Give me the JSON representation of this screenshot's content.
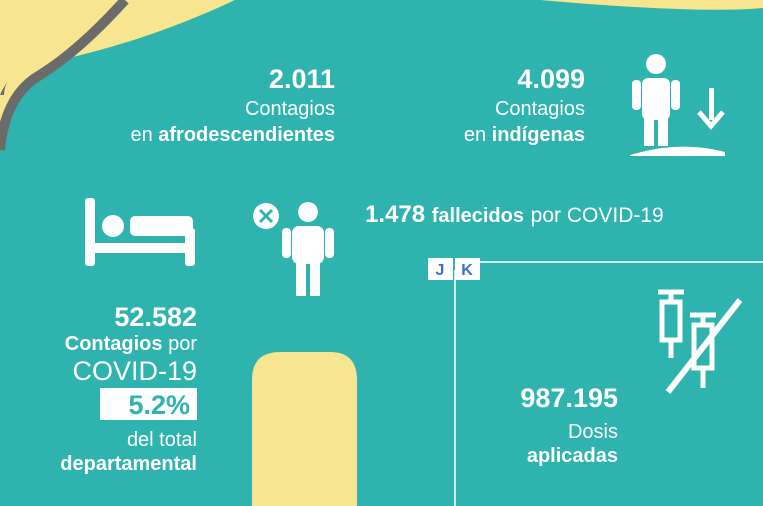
{
  "afro": {
    "number": "2.011",
    "line1": "Contagios",
    "prefix": "en",
    "group": "afrodescendientes"
  },
  "indigenous": {
    "number": "4.099",
    "line1": "Contagios",
    "prefix": "en",
    "group": "indígenas"
  },
  "deaths": {
    "number": "1.478",
    "label": "fallecidos",
    "suffix": "por COVID-19"
  },
  "cases": {
    "number": "52.582",
    "label": "Contagios",
    "connector": "por",
    "disease": "COVID-19",
    "percent": "5.2%",
    "line1": "del total",
    "line2": "departamental"
  },
  "tabs": [
    "J",
    "K"
  ],
  "vaccines": {
    "number": "987.195",
    "line1": "Dosis",
    "line2": "aplicadas"
  }
}
